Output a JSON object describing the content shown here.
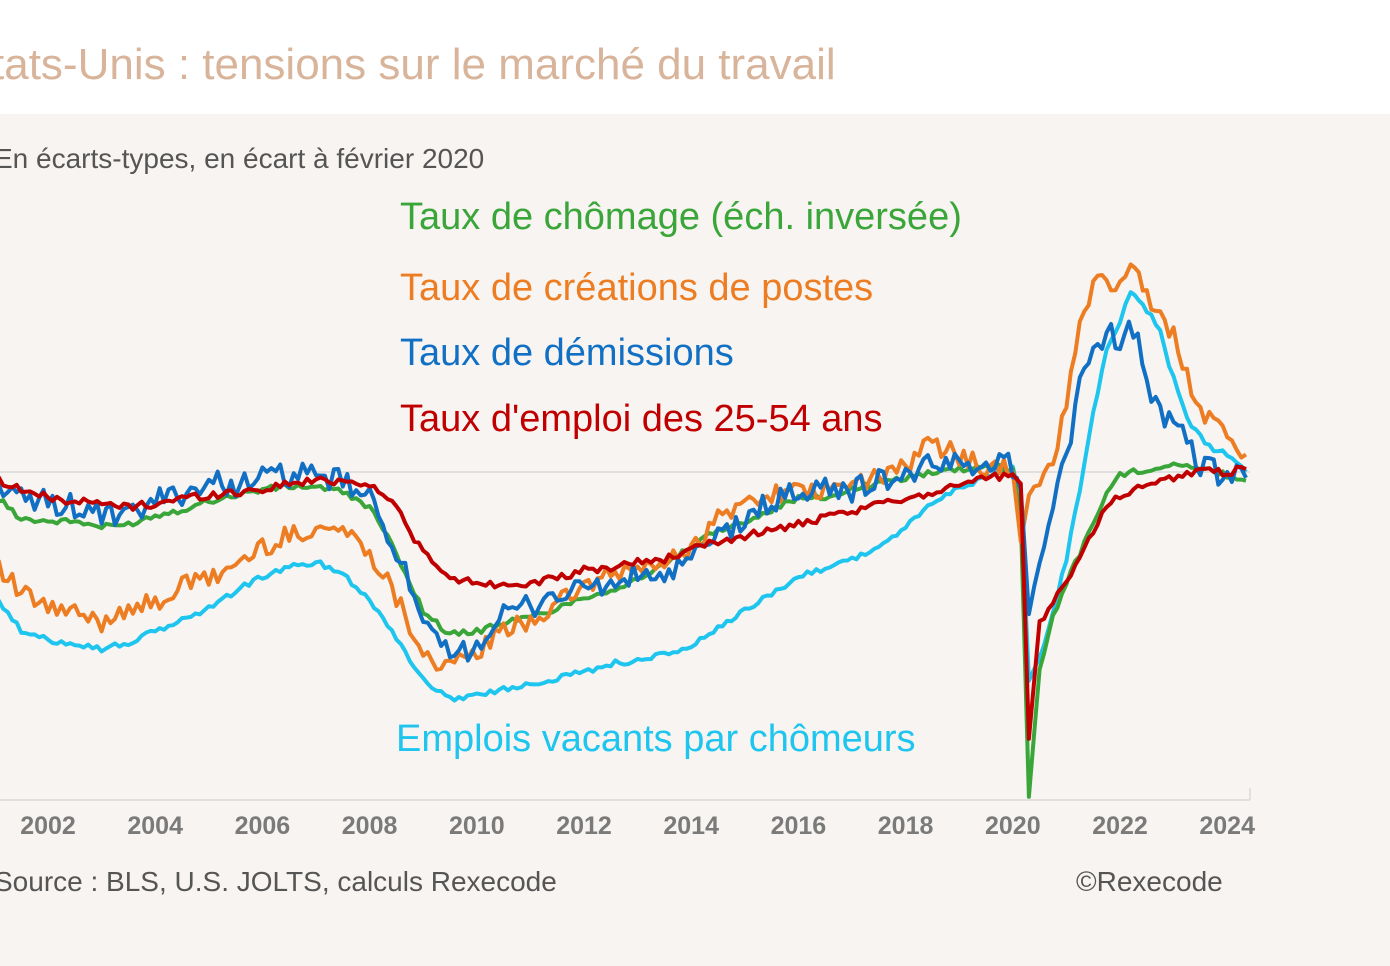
{
  "title": "tats-Unis : tensions sur le marché du travail",
  "subtitle": "En écarts-types, en écart à février 2020",
  "source": "Source : BLS, U.S. JOLTS, calculs Rexecode",
  "copyright": "©Rexecode",
  "colors": {
    "chomage": "#3aa63a",
    "creations": "#ed7d22",
    "demissions": "#1170c4",
    "emploi": "#c00000",
    "vacants": "#1ec5ee",
    "axis": "#d9d9d9"
  },
  "chart_data": {
    "type": "line",
    "title": "tats-Unis : tensions sur le marché du travail",
    "ylabel": "En écarts-types, en écart à février 2020",
    "xlim": [
      2000.5,
      2024.5
    ],
    "ylim": [
      -5.9,
      3.8
    ],
    "x_ticks": [
      "2002",
      "2004",
      "2006",
      "2008",
      "2010",
      "2012",
      "2014",
      "2016",
      "2018",
      "2020",
      "2022",
      "2024"
    ],
    "zero_line": 0,
    "series": [
      {
        "name": "Taux de chômage (éch. inversée)",
        "key": "chomage",
        "x": [
          2000.5,
          2001,
          2001.5,
          2002,
          2002.5,
          2003,
          2003.5,
          2004,
          2004.5,
          2005,
          2005.5,
          2006,
          2006.5,
          2007,
          2007.5,
          2008,
          2008.5,
          2009,
          2009.5,
          2010,
          2010.5,
          2011,
          2011.5,
          2012,
          2012.5,
          2013,
          2013.5,
          2014,
          2014.5,
          2015,
          2015.5,
          2016,
          2016.5,
          2017,
          2017.5,
          2018,
          2018.5,
          2019,
          2019.5,
          2020,
          2020.15,
          2020.3,
          2020.5,
          2020.75,
          2021,
          2021.25,
          2021.5,
          2021.75,
          2022,
          2022.5,
          2023,
          2023.5,
          2024,
          2024.35
        ],
        "y": [
          -0.2,
          -0.4,
          -0.8,
          -0.85,
          -0.85,
          -0.95,
          -0.9,
          -0.75,
          -0.65,
          -0.5,
          -0.4,
          -0.3,
          -0.25,
          -0.25,
          -0.35,
          -0.6,
          -1.4,
          -2.4,
          -2.8,
          -2.75,
          -2.6,
          -2.5,
          -2.35,
          -2.15,
          -2.05,
          -1.85,
          -1.6,
          -1.3,
          -1.0,
          -0.85,
          -0.65,
          -0.45,
          -0.45,
          -0.3,
          -0.2,
          -0.1,
          0.0,
          0.05,
          0.1,
          0.05,
          -0.8,
          -5.6,
          -3.4,
          -2.5,
          -1.9,
          -1.4,
          -0.9,
          -0.35,
          -0.05,
          0.05,
          0.15,
          0.05,
          -0.05,
          -0.15
        ]
      },
      {
        "name": "Taux de créations de postes",
        "key": "creations",
        "x": [
          2000.5,
          2001,
          2001.5,
          2002,
          2002.5,
          2003,
          2003.5,
          2004,
          2004.5,
          2005,
          2005.5,
          2006,
          2006.5,
          2007,
          2007.5,
          2008,
          2008.5,
          2009,
          2009.5,
          2010,
          2010.5,
          2011,
          2011.5,
          2012,
          2012.5,
          2013,
          2013.5,
          2014,
          2014.5,
          2015,
          2015.5,
          2016,
          2016.5,
          2017,
          2017.5,
          2018,
          2018.5,
          2019,
          2019.5,
          2020,
          2020.15,
          2020.3,
          2020.5,
          2020.75,
          2021,
          2021.25,
          2021.5,
          2021.75,
          2022,
          2022.2,
          2022.5,
          2022.75,
          2023,
          2023.25,
          2023.5,
          2023.75,
          2024,
          2024.35
        ],
        "y": [
          -0.5,
          -1.6,
          -2.1,
          -2.35,
          -2.45,
          -2.6,
          -2.3,
          -2.3,
          -1.95,
          -1.85,
          -1.6,
          -1.3,
          -1.1,
          -0.95,
          -1.0,
          -1.35,
          -2.15,
          -3.1,
          -3.4,
          -3.1,
          -2.75,
          -2.55,
          -2.3,
          -1.95,
          -1.8,
          -1.65,
          -1.6,
          -1.3,
          -0.8,
          -0.55,
          -0.35,
          -0.35,
          -0.35,
          -0.2,
          -0.1,
          0.1,
          0.5,
          0.3,
          0.1,
          0.0,
          -1.2,
          -0.4,
          -0.1,
          0.2,
          1.2,
          2.5,
          3.2,
          3.3,
          3.2,
          3.7,
          3.0,
          2.6,
          2.4,
          1.7,
          1.1,
          0.85,
          0.55,
          0.3
        ]
      },
      {
        "name": "Taux de démissions",
        "key": "demissions",
        "x": [
          2000.5,
          2001,
          2001.5,
          2002,
          2002.5,
          2003,
          2003.5,
          2004,
          2004.5,
          2005,
          2005.5,
          2006,
          2006.5,
          2007,
          2007.5,
          2008,
          2008.5,
          2009,
          2009.5,
          2010,
          2010.5,
          2011,
          2011.5,
          2012,
          2012.5,
          2013,
          2013.5,
          2014,
          2014.5,
          2015,
          2015.5,
          2016,
          2016.5,
          2017,
          2017.5,
          2018,
          2018.5,
          2019,
          2019.5,
          2020,
          2020.15,
          2020.3,
          2020.5,
          2020.75,
          2021,
          2021.25,
          2021.5,
          2021.75,
          2022,
          2022.25,
          2022.5,
          2022.75,
          2023,
          2023.25,
          2023.5,
          2023.75,
          2024,
          2024.35
        ],
        "y": [
          0.3,
          -0.2,
          -0.5,
          -0.5,
          -0.6,
          -0.75,
          -0.8,
          -0.5,
          -0.35,
          -0.2,
          -0.2,
          -0.1,
          -0.05,
          -0.1,
          -0.15,
          -0.5,
          -1.3,
          -2.7,
          -3.2,
          -2.95,
          -2.5,
          -2.3,
          -2.1,
          -2.0,
          -1.95,
          -1.8,
          -1.8,
          -1.55,
          -1.1,
          -0.85,
          -0.5,
          -0.35,
          -0.3,
          -0.3,
          -0.15,
          -0.05,
          0.1,
          0.15,
          0.2,
          0.1,
          -0.3,
          -2.45,
          -1.5,
          -0.5,
          0.3,
          1.5,
          2.1,
          2.4,
          2.3,
          2.5,
          1.6,
          1.0,
          0.8,
          0.5,
          0.1,
          0.0,
          -0.05,
          -0.1
        ]
      },
      {
        "name": "Taux d'emploi des 25-54 ans",
        "key": "emploi",
        "x": [
          2000.5,
          2001,
          2001.5,
          2002,
          2002.5,
          2003,
          2003.5,
          2004,
          2004.5,
          2005,
          2005.5,
          2006,
          2006.5,
          2007,
          2007.5,
          2008,
          2008.5,
          2009,
          2009.5,
          2010,
          2010.5,
          2011,
          2011.5,
          2012,
          2012.5,
          2013,
          2013.5,
          2014,
          2014.5,
          2015,
          2015.5,
          2016,
          2016.5,
          2017,
          2017.5,
          2018,
          2018.5,
          2019,
          2019.5,
          2020,
          2020.15,
          2020.3,
          2020.5,
          2020.75,
          2021,
          2021.25,
          2021.5,
          2021.75,
          2022,
          2022.5,
          2023,
          2023.5,
          2024,
          2024.35
        ],
        "y": [
          0.3,
          -0.1,
          -0.3,
          -0.45,
          -0.5,
          -0.55,
          -0.6,
          -0.55,
          -0.45,
          -0.4,
          -0.35,
          -0.3,
          -0.2,
          -0.15,
          -0.15,
          -0.2,
          -0.6,
          -1.4,
          -1.85,
          -1.9,
          -1.95,
          -1.9,
          -1.85,
          -1.7,
          -1.65,
          -1.55,
          -1.5,
          -1.35,
          -1.2,
          -1.1,
          -1.0,
          -0.9,
          -0.8,
          -0.7,
          -0.55,
          -0.45,
          -0.35,
          -0.2,
          -0.1,
          -0.05,
          -0.2,
          -4.6,
          -2.6,
          -2.2,
          -1.9,
          -1.5,
          -1.0,
          -0.6,
          -0.4,
          -0.2,
          -0.1,
          0.05,
          0.0,
          0.05
        ]
      },
      {
        "name": "Emplois vacants par chômeurs",
        "key": "vacants",
        "x": [
          2000.5,
          2001,
          2001.5,
          2002,
          2002.5,
          2003,
          2003.5,
          2004,
          2004.5,
          2005,
          2005.5,
          2006,
          2006.5,
          2007,
          2007.5,
          2008,
          2008.5,
          2009,
          2009.5,
          2010,
          2010.5,
          2011,
          2011.5,
          2012,
          2012.5,
          2013,
          2013.5,
          2014,
          2014.5,
          2015,
          2015.5,
          2016,
          2016.5,
          2017,
          2017.5,
          2018,
          2018.5,
          2019,
          2019.5,
          2020,
          2020.15,
          2020.3,
          2020.5,
          2020.75,
          2021,
          2021.25,
          2021.5,
          2021.75,
          2022,
          2022.2,
          2022.5,
          2022.75,
          2023,
          2023.25,
          2023.5,
          2023.75,
          2024,
          2024.35
        ],
        "y": [
          -0.8,
          -2.1,
          -2.75,
          -2.9,
          -2.95,
          -3.05,
          -2.95,
          -2.75,
          -2.55,
          -2.35,
          -2.05,
          -1.8,
          -1.65,
          -1.55,
          -1.75,
          -2.2,
          -2.85,
          -3.6,
          -3.9,
          -3.85,
          -3.75,
          -3.65,
          -3.55,
          -3.45,
          -3.3,
          -3.25,
          -3.15,
          -3.0,
          -2.7,
          -2.4,
          -2.1,
          -1.8,
          -1.65,
          -1.5,
          -1.3,
          -0.95,
          -0.55,
          -0.25,
          -0.1,
          0.05,
          -0.5,
          -3.6,
          -3.2,
          -2.4,
          -1.5,
          -0.3,
          1.0,
          2.1,
          2.6,
          3.1,
          2.8,
          2.4,
          1.6,
          0.9,
          0.6,
          0.4,
          0.3,
          0.0
        ]
      }
    ]
  }
}
